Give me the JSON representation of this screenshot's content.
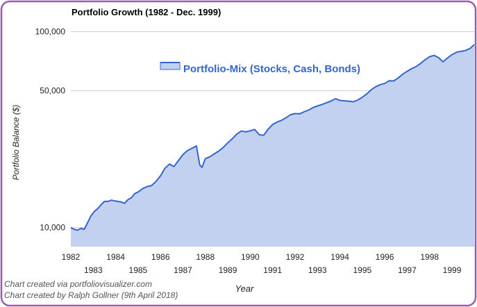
{
  "chart_data": {
    "type": "area",
    "title": "Portfolio Growth (1982 - Dec. 1999)",
    "xlabel": "Year",
    "ylabel": "Portfolio Balance ($)",
    "y_scale": "log",
    "ylim": [
      8000,
      110000
    ],
    "xlim": [
      1982,
      1999.99
    ],
    "grid": true,
    "legend": "top-center",
    "y_ticks": [
      {
        "value": 10000,
        "label": "10,000"
      },
      {
        "value": 50000,
        "label": "50,000"
      },
      {
        "value": 100000,
        "label": "100,000"
      }
    ],
    "x_ticks": [
      {
        "value": 1982,
        "label": "1982",
        "row": 1
      },
      {
        "value": 1983,
        "label": "1983",
        "row": 2
      },
      {
        "value": 1984,
        "label": "1984",
        "row": 1
      },
      {
        "value": 1985,
        "label": "1985",
        "row": 2
      },
      {
        "value": 1986,
        "label": "1986",
        "row": 1
      },
      {
        "value": 1987,
        "label": "1987",
        "row": 2
      },
      {
        "value": 1988,
        "label": "1988",
        "row": 1
      },
      {
        "value": 1989,
        "label": "1989",
        "row": 2
      },
      {
        "value": 1990,
        "label": "1990",
        "row": 1
      },
      {
        "value": 1991,
        "label": "1991",
        "row": 2
      },
      {
        "value": 1992,
        "label": "1992",
        "row": 1
      },
      {
        "value": 1993,
        "label": "1993",
        "row": 2
      },
      {
        "value": 1994,
        "label": "1994",
        "row": 1
      },
      {
        "value": 1995,
        "label": "1995",
        "row": 2
      },
      {
        "value": 1996,
        "label": "1996",
        "row": 1
      },
      {
        "value": 1997,
        "label": "1997",
        "row": 2
      },
      {
        "value": 1998,
        "label": "1998",
        "row": 1
      },
      {
        "value": 1999,
        "label": "1999",
        "row": 2
      }
    ],
    "series": [
      {
        "name": "Portfolio-Mix (Stocks, Cash, Bonds)",
        "color": "#3366cc",
        "fill": "#c3d1f0",
        "x": [
          1982.0,
          1982.15,
          1982.3,
          1982.45,
          1982.6,
          1982.75,
          1982.9,
          1983.05,
          1983.2,
          1983.35,
          1983.5,
          1983.65,
          1983.8,
          1983.95,
          1984.1,
          1984.25,
          1984.4,
          1984.55,
          1984.7,
          1984.85,
          1985.0,
          1985.2,
          1985.4,
          1985.6,
          1985.8,
          1986.0,
          1986.2,
          1986.4,
          1986.6,
          1986.8,
          1987.0,
          1987.2,
          1987.4,
          1987.6,
          1987.75,
          1987.85,
          1988.0,
          1988.2,
          1988.4,
          1988.6,
          1988.8,
          1989.0,
          1989.2,
          1989.4,
          1989.6,
          1989.8,
          1990.0,
          1990.2,
          1990.4,
          1990.6,
          1990.8,
          1991.0,
          1991.2,
          1991.4,
          1991.6,
          1991.8,
          1992.0,
          1992.2,
          1992.4,
          1992.6,
          1992.8,
          1993.0,
          1993.2,
          1993.4,
          1993.6,
          1993.8,
          1994.0,
          1994.2,
          1994.4,
          1994.6,
          1994.8,
          1995.0,
          1995.2,
          1995.4,
          1995.6,
          1995.8,
          1996.0,
          1996.2,
          1996.4,
          1996.6,
          1996.8,
          1997.0,
          1997.2,
          1997.4,
          1997.6,
          1997.8,
          1998.0,
          1998.2,
          1998.4,
          1998.6,
          1998.8,
          1999.0,
          1999.2,
          1999.4,
          1999.6,
          1999.8,
          1999.99
        ],
        "values": [
          10000,
          9800,
          9700,
          9900,
          9800,
          10600,
          11500,
          12100,
          12500,
          13100,
          13600,
          13600,
          13800,
          13700,
          13600,
          13500,
          13300,
          13900,
          14200,
          14900,
          15200,
          15800,
          16200,
          16400,
          17200,
          18400,
          20100,
          21100,
          20500,
          22000,
          23600,
          24700,
          25400,
          26100,
          20900,
          20300,
          22500,
          23000,
          23800,
          24600,
          25700,
          27100,
          28400,
          30000,
          31100,
          30800,
          31200,
          31700,
          29800,
          29600,
          31800,
          33600,
          34600,
          35300,
          36400,
          37700,
          38200,
          38100,
          39000,
          39800,
          41000,
          41800,
          42500,
          43400,
          44300,
          45500,
          44600,
          44400,
          44200,
          43900,
          44800,
          46300,
          48200,
          50600,
          52400,
          53700,
          54400,
          56200,
          56100,
          58100,
          60700,
          62800,
          64800,
          66400,
          68900,
          72000,
          74600,
          75700,
          73800,
          70200,
          73500,
          76400,
          78600,
          79400,
          80200,
          82100,
          86000
        ]
      }
    ],
    "credits": [
      "Chart created via portfoliovisualizer.com",
      "Chart created by Ralph Gollner (9th April 2018)"
    ],
    "frame_color": "#9b59b6"
  }
}
